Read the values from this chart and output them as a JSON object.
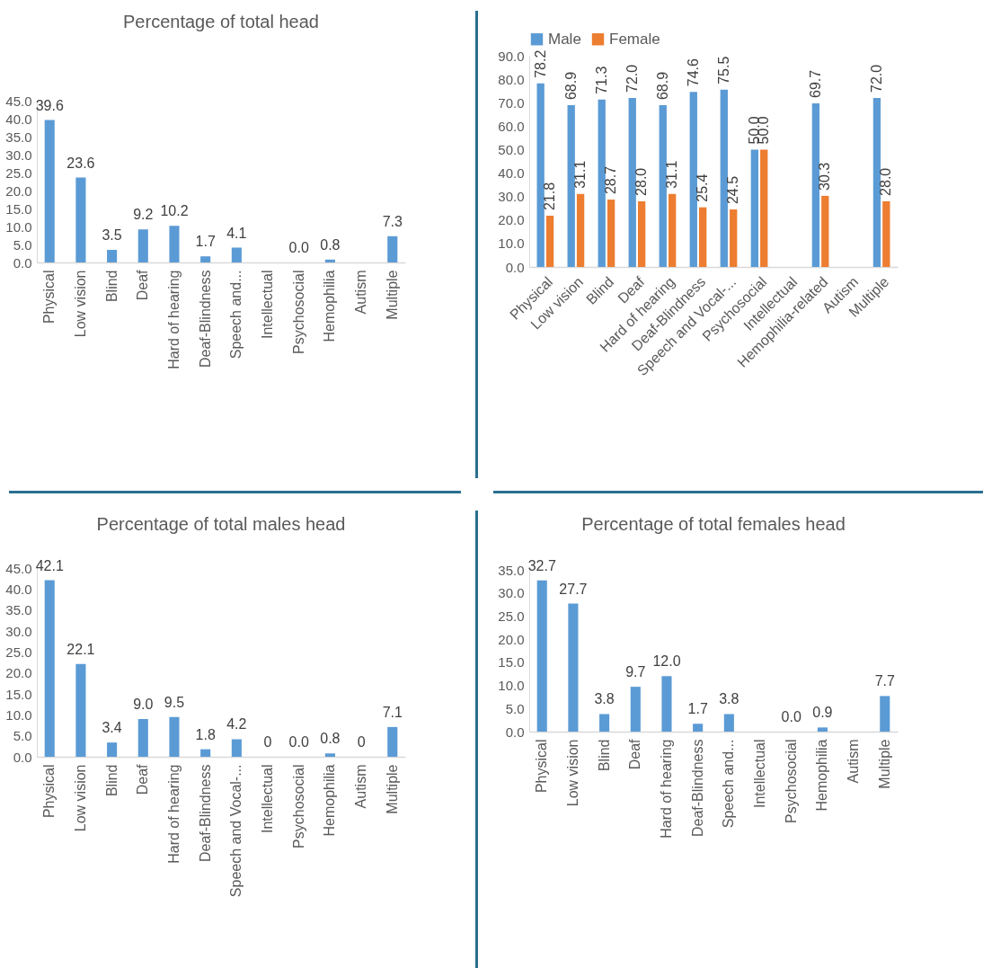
{
  "chart_data": [
    {
      "type": "bar",
      "title": "Percentage of total head",
      "categories": [
        "Physical",
        "Low vision",
        "Blind",
        "Deaf",
        "Hard of hearing",
        "Deaf-Blindness",
        "Speech and...",
        "Intellectual",
        "Psychosocial",
        "Hemophilia",
        "Autism",
        "Multiple"
      ],
      "values": [
        39.6,
        23.6,
        3.5,
        9.2,
        10.2,
        1.7,
        4.1,
        null,
        0.0,
        0.8,
        null,
        7.3
      ],
      "value_labels": [
        "39.6",
        "23.6",
        "3.5",
        "9.2",
        "10.2",
        "1.7",
        "4.1",
        null,
        "0.0",
        "0.8",
        null,
        "7.3"
      ],
      "color": "#5b9bd5",
      "ylim": [
        0,
        45
      ],
      "yticks": [
        {
          "value": 0,
          "label": "0.0"
        },
        {
          "value": 5,
          "label": "5.0"
        },
        {
          "value": 10,
          "label": "10.0"
        },
        {
          "value": 15,
          "label": "15.0"
        },
        {
          "value": 20,
          "label": "20.0"
        },
        {
          "value": 25,
          "label": "25.0"
        },
        {
          "value": 30,
          "label": "30.0"
        },
        {
          "value": 35,
          "label": "35.0"
        },
        {
          "value": 40,
          "label": "40.0"
        },
        {
          "value": 45,
          "label": "45.0"
        }
      ],
      "grid": false,
      "legend": false
    },
    {
      "type": "bar",
      "categories": [
        "Physical",
        "Low vision",
        "Blind",
        "Deaf",
        "Hard of hearing",
        "Deaf-Blindness",
        "Speech and Vocal-...",
        "Psychosocial",
        "Intellectual",
        "Hemophilia-related",
        "Autism",
        "Multiple"
      ],
      "series": [
        {
          "name": "Male",
          "color": "#5b9bd5",
          "values": [
            78.2,
            68.9,
            71.3,
            72.0,
            68.9,
            74.6,
            75.5,
            50.0,
            null,
            69.7,
            null,
            72.0
          ],
          "value_labels": [
            "78.2",
            "68.9",
            "71.3",
            "72.0",
            "68.9",
            "74.6",
            "75.5",
            "50.0",
            null,
            "69.7",
            null,
            "72.0"
          ]
        },
        {
          "name": "Female",
          "color": "#ed7d31",
          "values": [
            21.8,
            31.1,
            28.7,
            28.0,
            31.1,
            25.4,
            24.5,
            50.0,
            null,
            30.3,
            null,
            28.0
          ],
          "value_labels": [
            "21.8",
            "31.1",
            "28.7",
            "28.0",
            "31.1",
            "25.4",
            "24.5",
            "50.0",
            null,
            "30.3",
            null,
            "28.0"
          ]
        }
      ],
      "ylim": [
        0,
        90
      ],
      "yticks": [
        {
          "value": 0,
          "label": "0.0"
        },
        {
          "value": 10,
          "label": "10.0"
        },
        {
          "value": 20,
          "label": "20.0"
        },
        {
          "value": 30,
          "label": "30.0"
        },
        {
          "value": 40,
          "label": "40.0"
        },
        {
          "value": 50,
          "label": "50.0"
        },
        {
          "value": 60,
          "label": "60.0"
        },
        {
          "value": 70,
          "label": "70.0"
        },
        {
          "value": 80,
          "label": "80.0"
        },
        {
          "value": 90,
          "label": "90.0"
        }
      ],
      "grid": false,
      "legend": "top"
    },
    {
      "type": "bar",
      "title": "Percentage  of total males head",
      "categories": [
        "Physical",
        "Low vision",
        "Blind",
        "Deaf",
        "Hard of hearing",
        "Deaf-Blindness",
        "Speech and Vocal-...",
        "Intellectual",
        "Psychosocial",
        "Hemophilia",
        "Autism",
        "Multiple"
      ],
      "values": [
        42.1,
        22.1,
        3.4,
        9.0,
        9.5,
        1.8,
        4.2,
        0,
        0.0,
        0.8,
        0,
        7.1
      ],
      "value_labels": [
        "42.1",
        "22.1",
        "3.4",
        "9.0",
        "9.5",
        "1.8",
        "4.2",
        "0",
        "0.0",
        "0.8",
        "0",
        "7.1"
      ],
      "color": "#5b9bd5",
      "ylim": [
        0,
        45
      ],
      "yticks": [
        {
          "value": 0,
          "label": "0.0"
        },
        {
          "value": 5,
          "label": "5.0"
        },
        {
          "value": 10,
          "label": "10.0"
        },
        {
          "value": 15,
          "label": "15.0"
        },
        {
          "value": 20,
          "label": "20.0"
        },
        {
          "value": 25,
          "label": "25.0"
        },
        {
          "value": 30,
          "label": "30.0"
        },
        {
          "value": 35,
          "label": "35.0"
        },
        {
          "value": 40,
          "label": "40.0"
        },
        {
          "value": 45,
          "label": "45.0"
        }
      ],
      "grid": false,
      "legend": false
    },
    {
      "type": "bar",
      "title": "Percentage of total females head",
      "categories": [
        "Physical",
        "Low vision",
        "Blind",
        "Deaf",
        "Hard of hearing",
        "Deaf-Blindness",
        "Speech and...",
        "Intellectual",
        "Psychosocial",
        "Hemophilia",
        "Autism",
        "Multiple"
      ],
      "values": [
        32.7,
        27.7,
        3.8,
        9.7,
        12.0,
        1.7,
        3.8,
        null,
        0.0,
        0.9,
        null,
        7.7
      ],
      "value_labels": [
        "32.7",
        "27.7",
        "3.8",
        "9.7",
        "12.0",
        "1.7",
        "3.8",
        null,
        "0.0",
        "0.9",
        null,
        "7.7"
      ],
      "color": "#5b9bd5",
      "ylim": [
        0,
        35
      ],
      "yticks": [
        {
          "value": 0,
          "label": "0.0"
        },
        {
          "value": 5,
          "label": "5.0"
        },
        {
          "value": 10,
          "label": "10.0"
        },
        {
          "value": 15,
          "label": "15.0"
        },
        {
          "value": 20,
          "label": "20.0"
        },
        {
          "value": 25,
          "label": "25.0"
        },
        {
          "value": 30,
          "label": "30.0"
        },
        {
          "value": 35,
          "label": "35.0"
        }
      ],
      "grid": false,
      "legend": false
    }
  ]
}
